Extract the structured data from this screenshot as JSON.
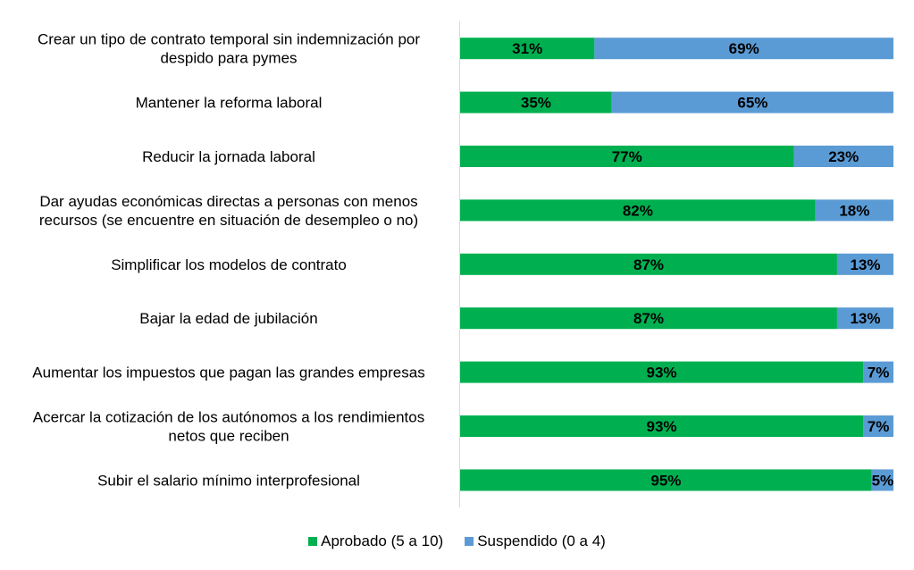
{
  "chart_data": {
    "type": "bar",
    "orientation": "horizontal",
    "stacked": true,
    "percent_stacked": true,
    "categories": [
      "Crear un tipo de contrato temporal sin indemnización por despido para pymes",
      "Mantener la reforma laboral",
      "Reducir la jornada laboral",
      "Dar ayudas económicas directas a personas con menos recursos (se encuentre en situación de desempleo o no)",
      "Simplificar los modelos de contrato",
      "Bajar la edad de jubilación",
      "Aumentar los impuestos que pagan las grandes empresas",
      "Acercar la cotización de los autónomos a los rendimientos netos que reciben",
      "Subir el salario mínimo interprofesional"
    ],
    "category_lines": [
      [
        "Crear un tipo de contrato temporal sin indemnización por",
        "despido para pymes"
      ],
      [
        "Mantener la reforma laboral"
      ],
      [
        "Reducir la jornada laboral"
      ],
      [
        "Dar ayudas económicas directas a personas con menos",
        "recursos (se encuentre en situación de desempleo o no)"
      ],
      [
        "Simplificar los modelos de contrato"
      ],
      [
        "Bajar la edad de jubilación"
      ],
      [
        "Aumentar los impuestos que pagan las grandes empresas"
      ],
      [
        "Acercar la cotización de los autónomos a los rendimientos",
        "netos que reciben"
      ],
      [
        "Subir el salario mínimo interprofesional"
      ]
    ],
    "series": [
      {
        "name": "Aprobado (5 a 10)",
        "color": "#00b050",
        "values": [
          31,
          35,
          77,
          82,
          87,
          87,
          93,
          93,
          95
        ],
        "labels": [
          "31%",
          "35%",
          "77%",
          "82%",
          "87%",
          "87%",
          "93%",
          "93%",
          "95%"
        ]
      },
      {
        "name": "Suspendido (0 a 4)",
        "color": "#5b9bd5",
        "values": [
          69,
          65,
          23,
          18,
          13,
          13,
          7,
          7,
          5
        ],
        "labels": [
          "69%",
          "65%",
          "23%",
          "18%",
          "13%",
          "13%",
          "7%",
          "7%",
          "5%"
        ]
      }
    ],
    "xlim": [
      0,
      100
    ],
    "grid": false,
    "legend_position": "bottom"
  },
  "legend": {
    "items": [
      {
        "label": "Aprobado (5 a 10)",
        "color": "#00b050"
      },
      {
        "label": "Suspendido (0 a 4)",
        "color": "#5b9bd5"
      }
    ]
  }
}
